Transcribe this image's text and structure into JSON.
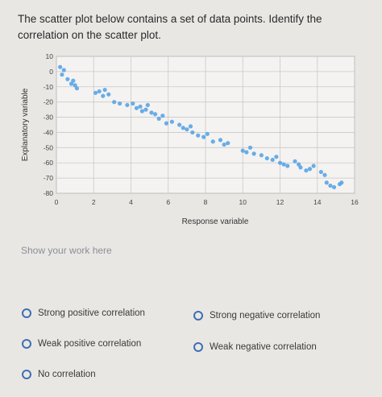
{
  "question": {
    "text": "The scatter plot below contains a set of data points. Identify the correlation on the scatter plot."
  },
  "work_placeholder": "Show your work here",
  "options": [
    {
      "label": "Strong positive correlation"
    },
    {
      "label": "Strong negative correlation"
    },
    {
      "label": "Weak positive correlation"
    },
    {
      "label": "Weak negative correlation"
    },
    {
      "label": "No correlation"
    }
  ],
  "colors": {
    "points": "#5aa4e6",
    "radio": "#3d6fb3"
  },
  "chart_data": {
    "type": "scatter",
    "title": "",
    "xlabel": "Response variable",
    "ylabel": "Explanatory variable",
    "xlim": [
      0,
      16
    ],
    "ylim": [
      -80,
      10
    ],
    "xticks": [
      0,
      2,
      4,
      6,
      8,
      10,
      12,
      14,
      16
    ],
    "yticks": [
      10,
      0,
      -10,
      -20,
      -30,
      -40,
      -50,
      -60,
      -70,
      -80
    ],
    "grid": true,
    "series": [
      {
        "x": [
          0.2,
          0.3,
          0.4,
          0.6,
          0.8,
          0.9,
          1.0,
          1.1,
          2.1,
          2.3,
          2.5,
          2.6,
          2.8,
          3.1,
          3.4,
          3.8,
          4.1,
          4.3,
          4.5,
          4.6,
          4.8,
          4.9,
          5.1,
          5.3,
          5.5,
          5.7,
          5.9,
          6.2,
          6.6,
          6.8,
          7.0,
          7.2,
          7.3,
          7.6,
          7.9,
          8.1,
          8.4,
          8.8,
          9.0,
          9.2,
          10.0,
          10.2,
          10.4,
          10.6,
          11.0,
          11.3,
          11.6,
          11.8,
          12.0,
          12.2,
          12.4,
          12.8,
          13.0,
          13.1,
          13.4,
          13.6,
          13.8,
          14.2,
          14.4,
          14.5,
          14.7,
          14.9,
          15.2,
          15.3
        ],
        "y": [
          3,
          -2,
          1,
          -5,
          -8,
          -6,
          -9,
          -11,
          -14,
          -13,
          -16,
          -12,
          -15,
          -20,
          -21,
          -22,
          -21,
          -24,
          -23,
          -26,
          -25,
          -22,
          -27,
          -28,
          -31,
          -29,
          -34,
          -33,
          -35,
          -37,
          -38,
          -36,
          -40,
          -42,
          -43,
          -41,
          -46,
          -45,
          -48,
          -47,
          -52,
          -53,
          -50,
          -54,
          -55,
          -57,
          -58,
          -56,
          -60,
          -61,
          -62,
          -59,
          -61,
          -63,
          -65,
          -64,
          -62,
          -66,
          -68,
          -73,
          -75,
          -76,
          -74,
          -73
        ]
      }
    ]
  }
}
